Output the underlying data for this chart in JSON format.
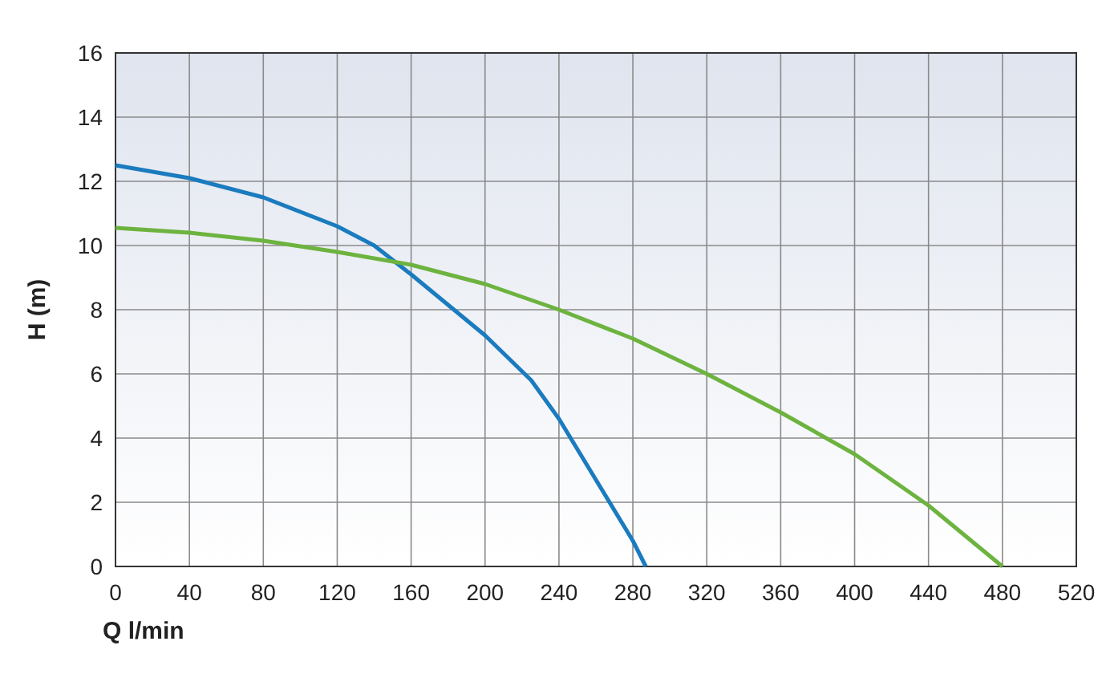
{
  "chart_data": {
    "type": "line",
    "xlabel": "Q l/min",
    "ylabel": "H (m)",
    "xlim": [
      0,
      520
    ],
    "xticks": [
      0,
      40,
      80,
      120,
      160,
      200,
      240,
      280,
      320,
      360,
      400,
      440,
      480,
      520
    ],
    "ylim": [
      0,
      16
    ],
    "yticks": [
      0,
      2,
      4,
      6,
      8,
      10,
      12,
      14,
      16
    ],
    "grid": true,
    "marker": "none",
    "line_style": "solid",
    "series": [
      {
        "color": "#1a7bbf",
        "x": [
          0,
          40,
          80,
          120,
          140,
          160,
          200,
          225,
          240,
          260,
          280,
          287
        ],
        "values": [
          12.5,
          12.1,
          11.5,
          10.6,
          10,
          9.1,
          7.2,
          5.8,
          4.6,
          2.7,
          0.8,
          0
        ]
      },
      {
        "color": "#6db33f",
        "x": [
          0,
          40,
          80,
          120,
          160,
          200,
          240,
          280,
          320,
          360,
          400,
          440,
          480
        ],
        "values": [
          10.55,
          10.4,
          10.15,
          9.8,
          9.4,
          8.8,
          8,
          7.1,
          6,
          4.8,
          3.5,
          1.9,
          0
        ]
      }
    ]
  }
}
